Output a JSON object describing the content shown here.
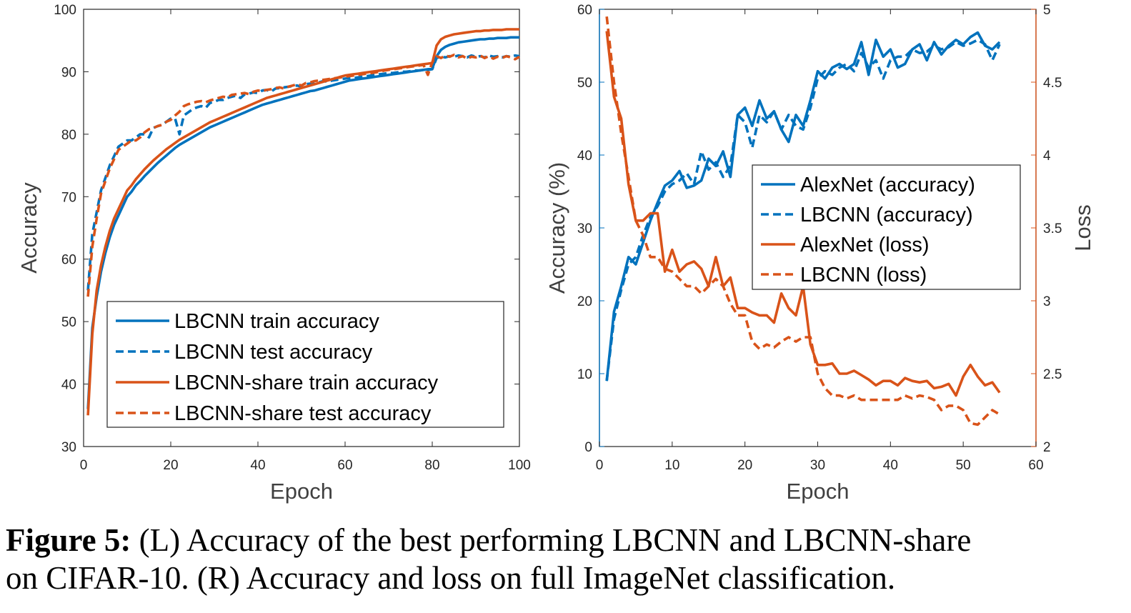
{
  "caption": {
    "label": "Figure 5:",
    "text_line1": " (L) Accuracy of the best performing LBCNN and LBCNN-share",
    "text_line2": "on CIFAR-10. (R) Accuracy and loss on full ImageNet classification."
  },
  "chart_data": [
    {
      "type": "line",
      "xlabel": "Epoch",
      "ylabel": "Accuracy",
      "xlim": [
        0,
        100
      ],
      "ylim": [
        30,
        100
      ],
      "xticks": [
        0,
        20,
        40,
        60,
        80,
        100
      ],
      "yticks": [
        30,
        40,
        50,
        60,
        70,
        80,
        90,
        100
      ],
      "grid": false,
      "legend": "bottom-right",
      "x": [
        1,
        2,
        3,
        4,
        5,
        6,
        7,
        8,
        9,
        10,
        11,
        12,
        13,
        14,
        15,
        16,
        17,
        18,
        19,
        20,
        21,
        22,
        23,
        24,
        25,
        26,
        27,
        28,
        29,
        30,
        31,
        32,
        33,
        34,
        35,
        36,
        37,
        38,
        39,
        40,
        41,
        42,
        43,
        44,
        45,
        46,
        47,
        48,
        49,
        50,
        51,
        52,
        53,
        54,
        55,
        56,
        57,
        58,
        59,
        60,
        61,
        62,
        63,
        64,
        65,
        66,
        67,
        68,
        69,
        70,
        71,
        72,
        73,
        74,
        75,
        76,
        77,
        78,
        79,
        80,
        81,
        82,
        83,
        84,
        85,
        86,
        87,
        88,
        89,
        90,
        91,
        92,
        93,
        94,
        95,
        96,
        97,
        98,
        99,
        100
      ],
      "series": [
        {
          "name": "LBCNN train accuracy",
          "color": "#0072BD",
          "dash": "solid",
          "values": [
            36,
            49,
            54,
            58,
            61,
            63.5,
            65.5,
            67,
            68.5,
            70,
            70.8,
            71.8,
            72.5,
            73.3,
            74,
            74.7,
            75.4,
            76,
            76.6,
            77.2,
            77.8,
            78.3,
            78.7,
            79.1,
            79.5,
            79.9,
            80.3,
            80.7,
            81.1,
            81.4,
            81.7,
            82,
            82.3,
            82.6,
            82.9,
            83.2,
            83.5,
            83.8,
            84.1,
            84.4,
            84.7,
            84.9,
            85.1,
            85.3,
            85.5,
            85.7,
            85.9,
            86.1,
            86.3,
            86.5,
            86.7,
            86.9,
            87,
            87.2,
            87.4,
            87.6,
            87.8,
            88,
            88.2,
            88.4,
            88.6,
            88.7,
            88.8,
            88.9,
            89,
            89.1,
            89.2,
            89.3,
            89.4,
            89.5,
            89.6,
            89.7,
            89.8,
            89.9,
            90,
            90.1,
            90.2,
            90.3,
            90.4,
            90.5,
            92.5,
            93.5,
            94,
            94.3,
            94.5,
            94.7,
            94.8,
            94.9,
            95,
            95.1,
            95.2,
            95.2,
            95.3,
            95.3,
            95.4,
            95.4,
            95.4,
            95.5,
            95.5,
            95.5
          ]
        },
        {
          "name": "LBCNN test accuracy",
          "color": "#0072BD",
          "dash": "dashed",
          "values": [
            55,
            64,
            67.5,
            71,
            73,
            75,
            76.5,
            78,
            78.5,
            79,
            79,
            79.5,
            80,
            80,
            79.5,
            81,
            81.3,
            81.5,
            82,
            82.5,
            82.5,
            80,
            83,
            83.5,
            84,
            84.3,
            84.5,
            84.2,
            85,
            85.2,
            85.5,
            85.5,
            85.8,
            86,
            86.2,
            85.8,
            86.4,
            86.5,
            86.7,
            86.6,
            87,
            87.1,
            86.8,
            87.3,
            87.4,
            87.5,
            87.6,
            87.7,
            87.8,
            87.6,
            88,
            88.1,
            88.2,
            88.3,
            88.5,
            88.4,
            88.6,
            88.7,
            88.8,
            88.9,
            89,
            89,
            89.1,
            89.2,
            89.3,
            89.4,
            89.5,
            89.6,
            89.7,
            89.8,
            89.8,
            89.9,
            90,
            90,
            90.1,
            90.2,
            90.2,
            90.3,
            90.3,
            90.4,
            92.2,
            92.4,
            92.3,
            92.5,
            92.4,
            92.6,
            92.5,
            92.3,
            92.6,
            92.4,
            92.5,
            92.3,
            92.6,
            92.4,
            92.5,
            92.3,
            92.5,
            92.4,
            92.6,
            92.5
          ]
        },
        {
          "name": "LBCNN-share train accuracy",
          "color": "#D95319",
          "dash": "solid",
          "values": [
            35,
            48,
            55,
            59,
            62,
            64.5,
            66.5,
            68,
            69.5,
            71,
            71.8,
            72.8,
            73.6,
            74.4,
            75.1,
            75.8,
            76.4,
            77,
            77.6,
            78.1,
            78.6,
            79.1,
            79.5,
            79.9,
            80.3,
            80.7,
            81.1,
            81.5,
            81.9,
            82.2,
            82.5,
            82.8,
            83.1,
            83.4,
            83.7,
            84,
            84.3,
            84.6,
            84.9,
            85.2,
            85.5,
            85.8,
            86,
            86.2,
            86.4,
            86.6,
            86.8,
            87,
            87.2,
            87.4,
            87.6,
            87.8,
            88,
            88.2,
            88.4,
            88.6,
            88.8,
            89,
            89.2,
            89.4,
            89.5,
            89.6,
            89.7,
            89.8,
            89.9,
            90,
            90.1,
            90.2,
            90.3,
            90.4,
            90.5,
            90.6,
            90.7,
            90.8,
            90.9,
            91,
            91.1,
            91.2,
            91.3,
            91.4,
            94.2,
            95.2,
            95.6,
            95.8,
            96,
            96.1,
            96.2,
            96.3,
            96.4,
            96.5,
            96.5,
            96.6,
            96.6,
            96.7,
            96.7,
            96.7,
            96.8,
            96.8,
            96.8,
            96.8
          ]
        },
        {
          "name": "LBCNN-share test accuracy",
          "color": "#D95319",
          "dash": "dashed",
          "values": [
            54,
            62,
            66.5,
            70.5,
            72.5,
            74.5,
            76,
            77.5,
            78,
            78.5,
            79,
            79,
            79.5,
            80.3,
            80.8,
            81,
            81.3,
            81.5,
            82,
            82.3,
            83,
            83.6,
            84.5,
            84.8,
            85,
            85.2,
            85.3,
            85.1,
            85.4,
            85.6,
            85.8,
            86,
            85.9,
            86.3,
            86.4,
            86.5,
            86.6,
            86.4,
            86.8,
            87,
            86.9,
            87.1,
            87.2,
            87.4,
            87.5,
            87.3,
            87.6,
            87.8,
            88,
            87.8,
            88.2,
            88.3,
            88.5,
            88.6,
            88.7,
            88.8,
            88.9,
            89,
            89.1,
            89.2,
            89.3,
            89.4,
            89.5,
            89.6,
            89.7,
            89.8,
            89.9,
            90,
            90.2,
            90.3,
            90.4,
            90.5,
            90.6,
            90.7,
            90.8,
            90.9,
            91,
            91.1,
            89.5,
            91.5,
            92.5,
            92.2,
            92.6,
            92.4,
            92.7,
            92.3,
            92.5,
            92.1,
            92.4,
            92.3,
            92.6,
            92.2,
            92.5,
            92.1,
            92.4,
            92.2,
            92.5,
            92.3,
            92,
            92.4
          ]
        }
      ]
    },
    {
      "type": "line",
      "xlabel": "Epoch",
      "ylabel": "Accuracy (%)",
      "ylabel_right": "Loss",
      "xlim": [
        0,
        60
      ],
      "ylim": [
        0,
        60
      ],
      "ylim_right": [
        2,
        5
      ],
      "xticks": [
        0,
        10,
        20,
        30,
        40,
        50,
        60
      ],
      "yticks": [
        0,
        10,
        20,
        30,
        40,
        50,
        60
      ],
      "yticks_right": [
        "2",
        "2.5",
        "3",
        "3.5",
        "4",
        "4.5",
        "5"
      ],
      "grid": false,
      "legend": "upper-right",
      "x": [
        1,
        2,
        3,
        4,
        5,
        6,
        7,
        8,
        9,
        10,
        11,
        12,
        13,
        14,
        15,
        16,
        17,
        18,
        19,
        20,
        21,
        22,
        23,
        24,
        25,
        26,
        27,
        28,
        29,
        30,
        31,
        32,
        33,
        34,
        35,
        36,
        37,
        38,
        39,
        40,
        41,
        42,
        43,
        44,
        45,
        46,
        47,
        48,
        49,
        50,
        51,
        52,
        53,
        54,
        55
      ],
      "series": [
        {
          "name": "AlexNet (accuracy)",
          "color": "#0072BD",
          "dash": "solid",
          "axis": "left",
          "values": [
            9,
            18.5,
            22,
            26,
            25,
            28,
            31,
            33.5,
            35.8,
            36.5,
            37.8,
            35.5,
            35.8,
            36.5,
            39.5,
            38.5,
            40.5,
            37,
            45.5,
            46.5,
            44,
            47.5,
            45,
            46,
            43.5,
            41.8,
            45.5,
            44,
            47.5,
            51.5,
            50.5,
            52,
            52.5,
            51.8,
            52.5,
            55.5,
            51,
            55.8,
            53.5,
            54.5,
            52,
            52.5,
            54.5,
            55.2,
            53,
            55.5,
            53.8,
            55,
            55.8,
            55.2,
            56.2,
            56.8,
            55,
            54.5,
            55.5
          ]
        },
        {
          "name": "LBCNN (accuracy)",
          "color": "#0072BD",
          "dash": "dashed",
          "axis": "left",
          "values": [
            9,
            17.5,
            21.5,
            25,
            26,
            29,
            31.5,
            33,
            35,
            36,
            36.5,
            37.5,
            36,
            40.5,
            38,
            39,
            37,
            38.5,
            45.5,
            44.5,
            41,
            45.5,
            44.5,
            46,
            43.5,
            45.5,
            44,
            43.5,
            46.5,
            50.5,
            51.5,
            51,
            52,
            52.5,
            51.5,
            54,
            52,
            53,
            50.5,
            53,
            53.5,
            53.5,
            54.5,
            54,
            54.2,
            55,
            54.5,
            54.8,
            55.5,
            55,
            55.3,
            55.8,
            55.2,
            53,
            55.2
          ]
        },
        {
          "name": "AlexNet (loss)",
          "color": "#D95319",
          "dash": "solid",
          "axis": "right",
          "values": [
            4.85,
            4.4,
            4.25,
            3.8,
            3.55,
            3.55,
            3.6,
            3.6,
            3.2,
            3.35,
            3.2,
            3.25,
            3.27,
            3.22,
            3.1,
            3.3,
            3.1,
            3.16,
            2.95,
            2.95,
            2.92,
            2.9,
            2.9,
            2.85,
            3.05,
            2.95,
            2.9,
            3.1,
            2.7,
            2.56,
            2.56,
            2.57,
            2.5,
            2.5,
            2.52,
            2.49,
            2.46,
            2.42,
            2.45,
            2.45,
            2.42,
            2.47,
            2.45,
            2.44,
            2.45,
            2.4,
            2.41,
            2.43,
            2.35,
            2.48,
            2.56,
            2.48,
            2.42,
            2.44,
            2.37
          ]
        },
        {
          "name": "LBCNN (loss)",
          "color": "#D95319",
          "dash": "dashed",
          "axis": "right",
          "values": [
            4.95,
            4.5,
            4.15,
            3.85,
            3.55,
            3.45,
            3.3,
            3.3,
            3.22,
            3.2,
            3.15,
            3.1,
            3.1,
            3.05,
            3.1,
            3.15,
            3.1,
            2.98,
            2.9,
            2.9,
            2.72,
            2.67,
            2.7,
            2.68,
            2.72,
            2.75,
            2.72,
            2.75,
            2.75,
            2.5,
            2.4,
            2.35,
            2.35,
            2.33,
            2.35,
            2.32,
            2.32,
            2.32,
            2.32,
            2.32,
            2.32,
            2.35,
            2.33,
            2.35,
            2.34,
            2.32,
            2.25,
            2.28,
            2.28,
            2.25,
            2.16,
            2.15,
            2.2,
            2.25,
            2.22
          ]
        }
      ]
    }
  ]
}
